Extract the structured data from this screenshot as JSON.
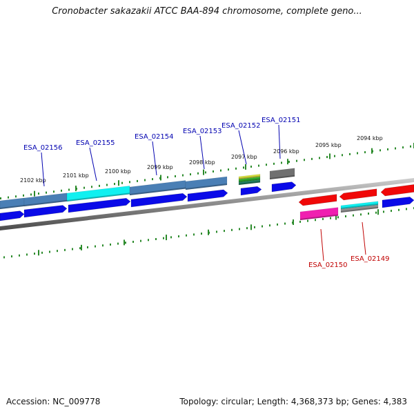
{
  "title": "Cronobacter sakazakii ATCC BAA-894 chromosome, complete geno...",
  "footer": {
    "accession": "Accession: NC_009778",
    "topology": "Topology: circular; Length: 4,368,373 bp; Genes: 4,383"
  },
  "colors": {
    "forward_label": "#0000b0",
    "reverse_label": "#c00000",
    "tick": "#2a8a2a",
    "backbone": "#8a8a8a",
    "blue": "#0a0ae8",
    "steel": "#4a7fb5",
    "cyan": "#10f0f0",
    "red": "#f00808",
    "magenta": "#f020b0",
    "gray": "#707070"
  },
  "kbp_ticks": [
    "2102 kbp",
    "2101 kbp",
    "2100 kbp",
    "2099 kbp",
    "2098 kbp",
    "2097 kbp",
    "2096 kbp",
    "2095 kbp",
    "2094 kbp"
  ],
  "genes": [
    {
      "name": "ESA_02156",
      "strand": "forward"
    },
    {
      "name": "ESA_02155",
      "strand": "forward"
    },
    {
      "name": "ESA_02154",
      "strand": "forward"
    },
    {
      "name": "ESA_02153",
      "strand": "forward"
    },
    {
      "name": "ESA_02152",
      "strand": "forward"
    },
    {
      "name": "ESA_02151",
      "strand": "forward"
    },
    {
      "name": "ESA_02150",
      "strand": "reverse"
    },
    {
      "name": "ESA_02149",
      "strand": "reverse"
    }
  ]
}
